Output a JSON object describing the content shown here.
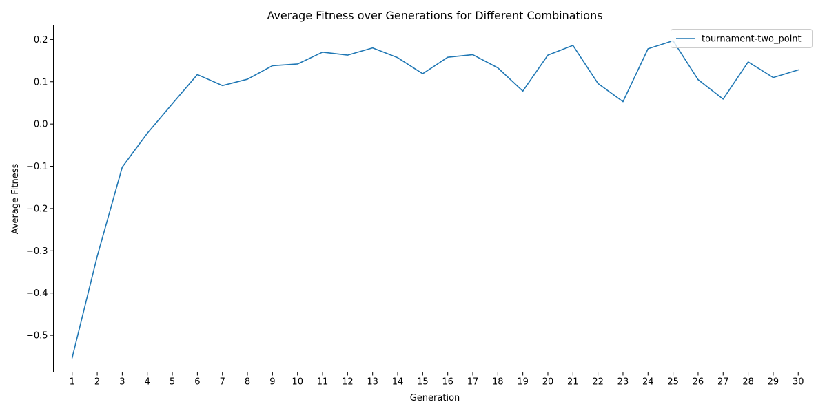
{
  "chart_data": {
    "type": "line",
    "title": "Average Fitness over Generations for Different Combinations",
    "xlabel": "Generation",
    "ylabel": "Average Fitness",
    "x": [
      1,
      2,
      3,
      4,
      5,
      6,
      7,
      8,
      9,
      10,
      11,
      12,
      13,
      14,
      15,
      16,
      17,
      18,
      19,
      20,
      21,
      22,
      23,
      24,
      25,
      26,
      27,
      28,
      29,
      30
    ],
    "xticks": [
      "1",
      "2",
      "3",
      "4",
      "5",
      "6",
      "7",
      "8",
      "9",
      "10",
      "11",
      "12",
      "13",
      "14",
      "15",
      "16",
      "17",
      "18",
      "19",
      "20",
      "21",
      "22",
      "23",
      "24",
      "25",
      "26",
      "27",
      "28",
      "29",
      "30"
    ],
    "yticks": [
      0.2,
      0.1,
      0.0,
      -0.1,
      -0.2,
      -0.3,
      -0.4,
      -0.5
    ],
    "ytick_labels": [
      "0.2",
      "0.1",
      "0.0",
      "−0.1",
      "−0.2",
      "−0.3",
      "−0.4",
      "−0.5"
    ],
    "xlim": [
      0.25,
      30.75
    ],
    "ylim": [
      -0.587,
      0.234
    ],
    "grid": false,
    "legend_position": "top-right",
    "series": [
      {
        "name": "tournament-two_point",
        "color": "#1f77b4",
        "values": [
          -0.553,
          -0.313,
          -0.102,
          -0.022,
          0.048,
          0.117,
          0.091,
          0.106,
          0.138,
          0.142,
          0.17,
          0.163,
          0.18,
          0.157,
          0.119,
          0.158,
          0.164,
          0.133,
          0.078,
          0.163,
          0.186,
          0.096,
          0.053,
          0.178,
          0.197,
          0.105,
          0.059,
          0.147,
          0.11,
          0.128
        ]
      }
    ]
  }
}
